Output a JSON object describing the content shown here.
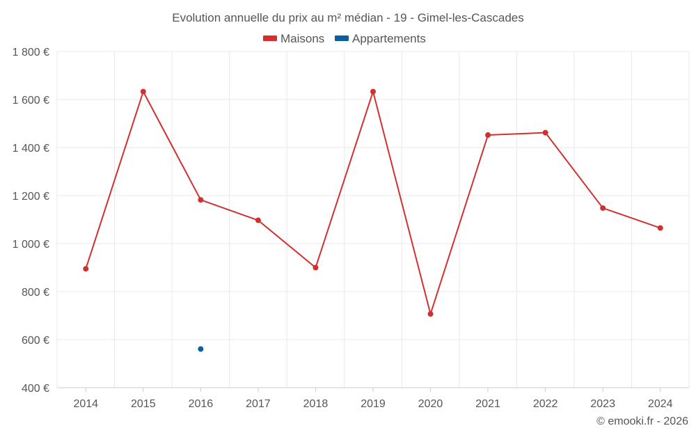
{
  "chart_data": {
    "type": "line",
    "title": "Evolution annuelle du prix au m² médian - 19 - Gimel-les-Cascades",
    "x": [
      "2014",
      "2015",
      "2016",
      "2017",
      "2018",
      "2019",
      "2020",
      "2021",
      "2022",
      "2023",
      "2024"
    ],
    "ylim": [
      400,
      1800
    ],
    "yticks": [
      400,
      600,
      800,
      1000,
      1200,
      1400,
      1600,
      1800
    ],
    "ytick_labels": [
      "400 €",
      "600 €",
      "800 €",
      "1 000 €",
      "1 200 €",
      "1 400 €",
      "1 600 €",
      "1 800 €"
    ],
    "grid": true,
    "legend_position": "top-center",
    "series": [
      {
        "name": "Maisons",
        "color": "#d32f2f",
        "values": [
          895,
          1633,
          1182,
          1097,
          900,
          1633,
          707,
          1452,
          1462,
          1148,
          1065
        ]
      },
      {
        "name": "Appartements",
        "color": "#0d5e9c",
        "values": [
          null,
          null,
          561,
          null,
          null,
          null,
          null,
          null,
          null,
          null,
          null
        ]
      }
    ]
  },
  "credit": "© emooki.fr - 2026"
}
